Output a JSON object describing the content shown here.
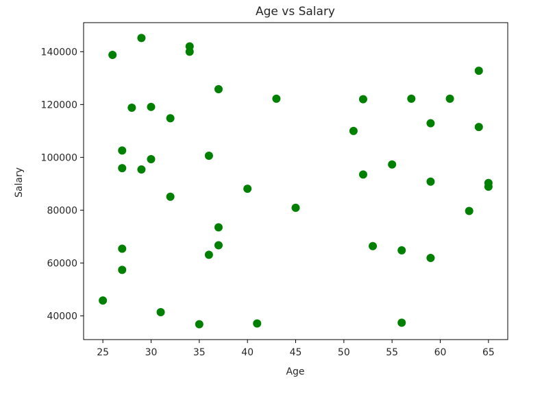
{
  "chart_data": {
    "type": "scatter",
    "title": "Age vs Salary",
    "xlabel": "Age",
    "ylabel": "Salary",
    "xlim": [
      23.0,
      67.0
    ],
    "ylim": [
      31000,
      151000
    ],
    "xticks": [
      25,
      30,
      35,
      40,
      45,
      50,
      55,
      60,
      65
    ],
    "yticks": [
      40000,
      60000,
      80000,
      100000,
      120000,
      140000
    ],
    "marker_color": "#008000",
    "grid": false,
    "series": [
      {
        "points": [
          {
            "x": 25,
            "y": 45800
          },
          {
            "x": 26,
            "y": 138800
          },
          {
            "x": 27,
            "y": 102600
          },
          {
            "x": 27,
            "y": 95900
          },
          {
            "x": 27,
            "y": 65400
          },
          {
            "x": 27,
            "y": 57400
          },
          {
            "x": 28,
            "y": 118800
          },
          {
            "x": 29,
            "y": 145200
          },
          {
            "x": 29,
            "y": 95400
          },
          {
            "x": 30,
            "y": 119100
          },
          {
            "x": 30,
            "y": 99300
          },
          {
            "x": 31,
            "y": 41400
          },
          {
            "x": 32,
            "y": 114800
          },
          {
            "x": 32,
            "y": 85100
          },
          {
            "x": 34,
            "y": 142000
          },
          {
            "x": 34,
            "y": 140000
          },
          {
            "x": 35,
            "y": 36800
          },
          {
            "x": 36,
            "y": 100600
          },
          {
            "x": 36,
            "y": 63100
          },
          {
            "x": 37,
            "y": 125800
          },
          {
            "x": 37,
            "y": 73500
          },
          {
            "x": 37,
            "y": 66700
          },
          {
            "x": 40,
            "y": 88100
          },
          {
            "x": 41,
            "y": 37100
          },
          {
            "x": 43,
            "y": 122200
          },
          {
            "x": 45,
            "y": 80900
          },
          {
            "x": 51,
            "y": 110000
          },
          {
            "x": 52,
            "y": 122000
          },
          {
            "x": 52,
            "y": 93500
          },
          {
            "x": 53,
            "y": 66400
          },
          {
            "x": 55,
            "y": 97300
          },
          {
            "x": 56,
            "y": 64800
          },
          {
            "x": 56,
            "y": 37400
          },
          {
            "x": 57,
            "y": 122200
          },
          {
            "x": 59,
            "y": 112900
          },
          {
            "x": 59,
            "y": 90800
          },
          {
            "x": 59,
            "y": 61900
          },
          {
            "x": 61,
            "y": 122200
          },
          {
            "x": 63,
            "y": 79700
          },
          {
            "x": 64,
            "y": 132800
          },
          {
            "x": 64,
            "y": 111500
          },
          {
            "x": 65,
            "y": 90300
          },
          {
            "x": 65,
            "y": 88900
          }
        ]
      }
    ]
  }
}
